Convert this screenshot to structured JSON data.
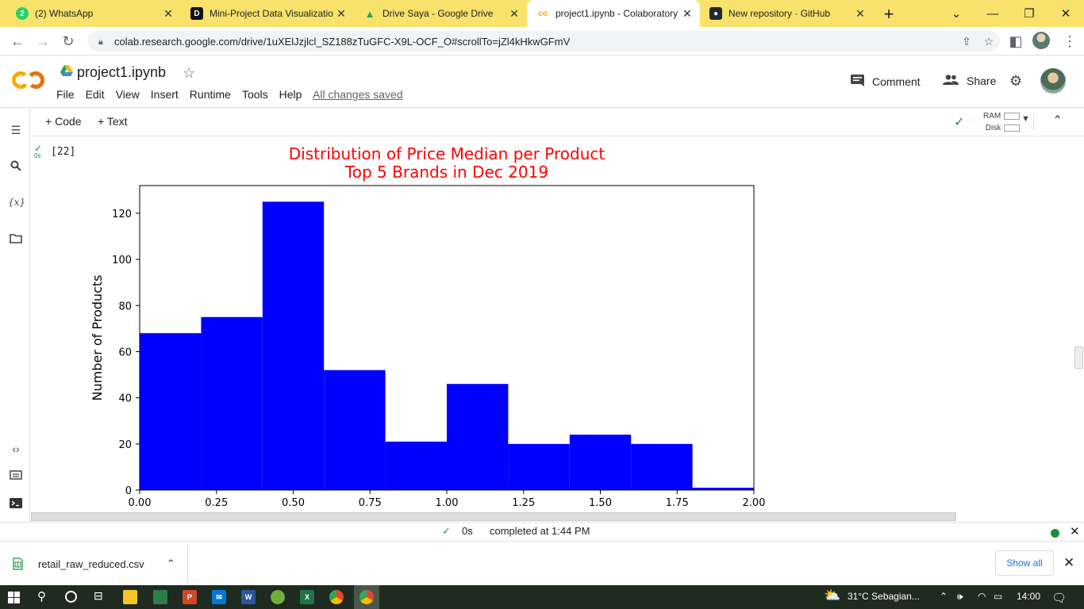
{
  "browser": {
    "tabs": [
      {
        "title": "(2) WhatsApp",
        "icon": "whatsapp-icon",
        "color": "#25d366"
      },
      {
        "title": "Mini-Project Data Visualizatio",
        "icon": "dqlab-icon",
        "color": "#111111"
      },
      {
        "title": "Drive Saya - Google Drive",
        "icon": "google-drive-icon",
        "color": "#1fa463"
      },
      {
        "title": "project1.ipynb - Colaboratory",
        "icon": "colab-icon",
        "color": "#f9ab00",
        "active": true
      },
      {
        "title": "New repository · GitHub",
        "icon": "github-icon",
        "color": "#24292e"
      }
    ],
    "url": "colab.research.google.com/drive/1uXElJzjlcl_SZ188zTuGFC-X9L-OCF_O#scrollTo=jZl4kHkwGFmV"
  },
  "colab": {
    "notebook_name": "project1.ipynb",
    "menu": [
      "File",
      "Edit",
      "View",
      "Insert",
      "Runtime",
      "Tools",
      "Help"
    ],
    "save_status": "All changes saved",
    "comment_label": "Comment",
    "share_label": "Share",
    "toolbar": {
      "code_label": "Code",
      "text_label": "Text",
      "ram_label": "RAM",
      "disk_label": "Disk"
    },
    "cell": {
      "exec_count": "[22]",
      "exec_time": "0s"
    },
    "status": {
      "time": "0s",
      "text": "completed at 1:44 PM"
    }
  },
  "download": {
    "filename": "retail_raw_reduced.csv",
    "show_all": "Show all"
  },
  "taskbar": {
    "weather": "31°C  Sebagian...",
    "time": "14:00"
  },
  "chart_data": {
    "type": "bar",
    "title": "Distribution of Price Median per Product\nTop 5 Brands in Dec 2019",
    "title_lines": [
      "Distribution of Price Median per Product",
      "Top 5 Brands in Dec 2019"
    ],
    "xlabel": "",
    "ylabel": "Number of Products",
    "bin_edges": [
      0.0,
      0.2,
      0.4,
      0.6,
      0.8,
      1.0,
      1.2,
      1.4,
      1.6,
      1.8,
      2.0
    ],
    "values": [
      68,
      75,
      125,
      52,
      21,
      46,
      20,
      24,
      20,
      1
    ],
    "xlim": [
      0,
      2.0
    ],
    "ylim": [
      0,
      132
    ],
    "xticks": [
      "0.00",
      "0.25",
      "0.50",
      "0.75",
      "1.00",
      "1.25",
      "1.50",
      "1.75",
      "2.00"
    ],
    "yticks": [
      "0",
      "20",
      "40",
      "60",
      "80",
      "100",
      "120"
    ],
    "bar_color": "#0000ff",
    "title_color": "#ff0000",
    "grid": false
  }
}
